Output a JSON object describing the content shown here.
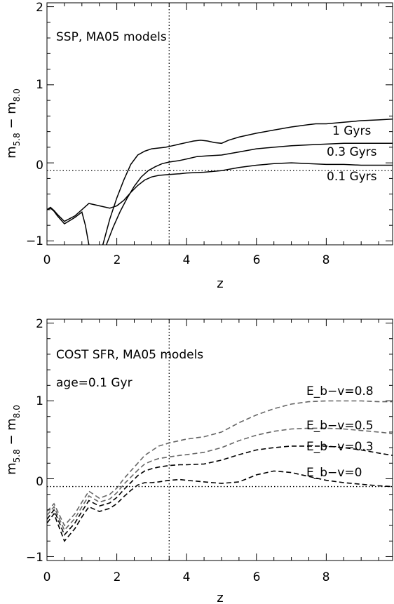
{
  "chart_data": [
    {
      "type": "line",
      "title": "",
      "xlabel": "z",
      "ylabel": "m_5.8 - m_8.0",
      "xlim": [
        0,
        9.9
      ],
      "ylim": [
        -1.05,
        2.05
      ],
      "xticks": [
        "0",
        "2",
        "4",
        "6",
        "8"
      ],
      "yticks": [
        "−1",
        "0",
        "1",
        "2"
      ],
      "annotations": [
        "SSP, MA05 models"
      ],
      "reference_lines": {
        "vertical_x": 3.5,
        "horizontal_y": -0.1,
        "style": "dotted"
      },
      "series": [
        {
          "name": "1 Gyrs",
          "style": "solid",
          "color": "#000000",
          "x": [
            0,
            0.1,
            0.2,
            0.3,
            0.5,
            0.8,
            1.0,
            1.1,
            1.2
          ],
          "y": [
            -0.6,
            -0.58,
            -0.62,
            -0.68,
            -0.78,
            -0.7,
            -0.63,
            -0.8,
            -1.05
          ]
        },
        {
          "name": "1 Gyrs",
          "style": "solid",
          "color": "#000000",
          "x": [
            1.6,
            1.8,
            2.0,
            2.2,
            2.4,
            2.6,
            2.8,
            3.0,
            3.2,
            3.4,
            3.6,
            3.8,
            4.0,
            4.2,
            4.4,
            4.6,
            4.8,
            5.0,
            5.2,
            5.5,
            6.0,
            6.5,
            7.0,
            7.5,
            7.7,
            8.0,
            8.5,
            9.0,
            9.5,
            9.9
          ],
          "y": [
            -1.05,
            -0.72,
            -0.45,
            -0.22,
            -0.02,
            0.1,
            0.15,
            0.18,
            0.19,
            0.2,
            0.22,
            0.24,
            0.26,
            0.28,
            0.29,
            0.28,
            0.26,
            0.25,
            0.29,
            0.33,
            0.38,
            0.42,
            0.46,
            0.49,
            0.5,
            0.5,
            0.52,
            0.54,
            0.55,
            0.56
          ]
        },
        {
          "name": "0.3 Gyrs",
          "style": "solid",
          "color": "#000000",
          "x": [
            1.7,
            1.9,
            2.1,
            2.3,
            2.5,
            2.7,
            2.9,
            3.1,
            3.3,
            3.5,
            3.8,
            4.0,
            4.3,
            4.6,
            5.0,
            5.5,
            6.0,
            6.5,
            7.0,
            7.5,
            8.0,
            8.5,
            9.0,
            9.5,
            9.9
          ],
          "y": [
            -1.05,
            -0.82,
            -0.62,
            -0.45,
            -0.3,
            -0.18,
            -0.1,
            -0.05,
            -0.01,
            0.01,
            0.03,
            0.05,
            0.08,
            0.09,
            0.1,
            0.14,
            0.18,
            0.2,
            0.22,
            0.23,
            0.24,
            0.25,
            0.25,
            0.25,
            0.25
          ]
        },
        {
          "name": "0.1 Gyrs",
          "style": "solid",
          "color": "#000000",
          "x": [
            0,
            0.1,
            0.2,
            0.3,
            0.5,
            0.8,
            1.0,
            1.2,
            1.5,
            1.8,
            2.0,
            2.2,
            2.4,
            2.6,
            2.8,
            3.0,
            3.2,
            3.5,
            3.8,
            4.0,
            4.5,
            5.0,
            5.5,
            6.0,
            6.5,
            7.0,
            7.5,
            8.0,
            8.5,
            9.0,
            9.5,
            9.9
          ],
          "y": [
            -0.6,
            -0.57,
            -0.61,
            -0.66,
            -0.75,
            -0.68,
            -0.6,
            -0.52,
            -0.55,
            -0.58,
            -0.55,
            -0.48,
            -0.38,
            -0.29,
            -0.22,
            -0.18,
            -0.16,
            -0.15,
            -0.14,
            -0.13,
            -0.12,
            -0.1,
            -0.06,
            -0.03,
            -0.01,
            0.0,
            -0.01,
            -0.02,
            -0.02,
            -0.03,
            -0.03,
            -0.03
          ]
        }
      ],
      "series_labels": [
        "1 Gyrs",
        "0.3 Gyrs",
        "0.1 Gyrs"
      ],
      "grid": false
    },
    {
      "type": "line",
      "title": "",
      "xlabel": "z",
      "ylabel": "m_5.8 - m_8.0",
      "xlim": [
        0,
        9.9
      ],
      "ylim": [
        -1.05,
        2.05
      ],
      "xticks": [
        "0",
        "2",
        "4",
        "6",
        "8"
      ],
      "yticks": [
        "−1",
        "0",
        "1",
        "2"
      ],
      "annotations": [
        "COST SFR, MA05 models",
        "age=0.1 Gyr"
      ],
      "reference_lines": {
        "vertical_x": 3.5,
        "horizontal_y": -0.1,
        "style": "dotted"
      },
      "series": [
        {
          "name": "E_b−v=0.8",
          "style": "dashed",
          "color": "#666666",
          "x": [
            0,
            0.2,
            0.5,
            0.8,
            1.0,
            1.2,
            1.5,
            1.8,
            2.0,
            2.2,
            2.4,
            2.6,
            2.8,
            3.0,
            3.2,
            3.5,
            3.8,
            4.0,
            4.5,
            5.0,
            5.5,
            6.0,
            6.5,
            7.0,
            7.5,
            8.0,
            8.5,
            9.0,
            9.5,
            9.9
          ],
          "y": [
            -0.42,
            -0.32,
            -0.6,
            -0.45,
            -0.3,
            -0.16,
            -0.25,
            -0.2,
            -0.12,
            0.0,
            0.1,
            0.2,
            0.3,
            0.36,
            0.42,
            0.46,
            0.49,
            0.51,
            0.54,
            0.6,
            0.72,
            0.82,
            0.9,
            0.96,
            0.99,
            1.0,
            1.0,
            1.0,
            0.99,
            0.99
          ]
        },
        {
          "name": "E_b−v=0.5",
          "style": "dashed",
          "color": "#666666",
          "x": [
            0,
            0.2,
            0.5,
            0.8,
            1.0,
            1.2,
            1.5,
            1.8,
            2.0,
            2.2,
            2.4,
            2.6,
            2.8,
            3.0,
            3.2,
            3.5,
            3.8,
            4.0,
            4.5,
            5.0,
            5.5,
            6.0,
            6.5,
            7.0,
            7.5,
            8.0,
            8.5,
            9.0,
            9.5,
            9.9
          ],
          "y": [
            -0.47,
            -0.36,
            -0.66,
            -0.51,
            -0.36,
            -0.22,
            -0.3,
            -0.26,
            -0.18,
            -0.07,
            0.02,
            0.11,
            0.19,
            0.23,
            0.26,
            0.28,
            0.3,
            0.31,
            0.34,
            0.4,
            0.49,
            0.56,
            0.61,
            0.64,
            0.65,
            0.65,
            0.64,
            0.62,
            0.6,
            0.58
          ]
        },
        {
          "name": "E_b−v=0.3",
          "style": "dashed",
          "color": "#000000",
          "x": [
            0,
            0.2,
            0.5,
            0.8,
            1.0,
            1.2,
            1.5,
            1.8,
            2.0,
            2.2,
            2.4,
            2.6,
            2.8,
            3.0,
            3.2,
            3.5,
            3.8,
            4.0,
            4.5,
            5.0,
            5.5,
            6.0,
            6.5,
            7.0,
            7.5,
            8.0,
            8.5,
            9.0,
            9.5,
            9.9
          ],
          "y": [
            -0.52,
            -0.4,
            -0.72,
            -0.57,
            -0.42,
            -0.28,
            -0.35,
            -0.31,
            -0.24,
            -0.14,
            -0.05,
            0.04,
            0.1,
            0.13,
            0.15,
            0.17,
            0.18,
            0.18,
            0.19,
            0.24,
            0.31,
            0.37,
            0.4,
            0.42,
            0.42,
            0.42,
            0.4,
            0.37,
            0.33,
            0.3
          ]
        },
        {
          "name": "E_b−v=0",
          "style": "dashed",
          "color": "#000000",
          "x": [
            0,
            0.2,
            0.5,
            0.8,
            1.0,
            1.2,
            1.5,
            1.8,
            2.0,
            2.2,
            2.4,
            2.6,
            2.8,
            3.0,
            3.2,
            3.5,
            3.8,
            4.0,
            4.5,
            5.0,
            5.5,
            6.0,
            6.5,
            7.0,
            7.5,
            8.0,
            8.5,
            9.0,
            9.5,
            9.9
          ],
          "y": [
            -0.57,
            -0.45,
            -0.8,
            -0.64,
            -0.49,
            -0.36,
            -0.42,
            -0.38,
            -0.32,
            -0.23,
            -0.15,
            -0.08,
            -0.05,
            -0.05,
            -0.04,
            -0.02,
            -0.01,
            -0.02,
            -0.04,
            -0.06,
            -0.04,
            0.05,
            0.1,
            0.08,
            0.03,
            -0.02,
            -0.05,
            -0.07,
            -0.09,
            -0.1
          ]
        }
      ],
      "series_labels": [
        "E_b−v=0.8",
        "E_b−v=0.5",
        "E_b−v=0.3",
        "E_b−v=0"
      ],
      "grid": false
    }
  ]
}
